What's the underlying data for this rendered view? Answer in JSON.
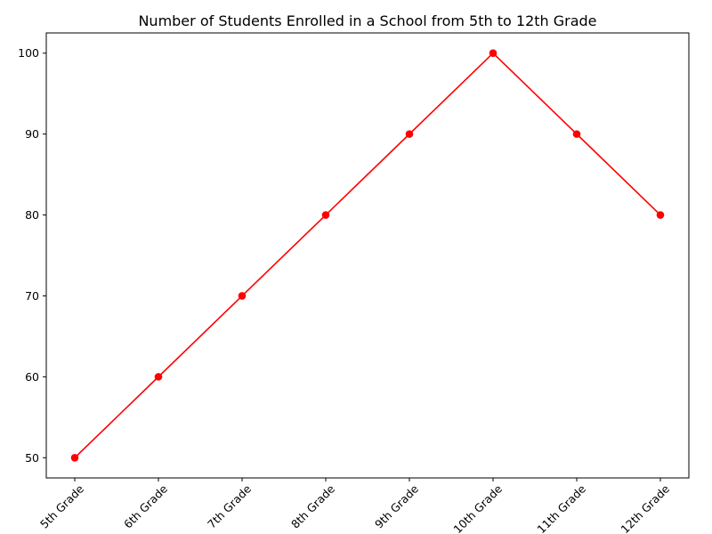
{
  "chart_data": {
    "type": "line",
    "title": "Number of Students Enrolled in a School from 5th to 12th Grade",
    "xlabel": "",
    "ylabel": "",
    "categories": [
      "5th Grade",
      "6th Grade",
      "7th Grade",
      "8th Grade",
      "9th Grade",
      "10th Grade",
      "11th Grade",
      "12th Grade"
    ],
    "series": [
      {
        "values": [
          50,
          60,
          70,
          80,
          90,
          100,
          90,
          80
        ],
        "color": "#ff0000",
        "marker": "circle"
      }
    ],
    "ylim": [
      47.5,
      102.5
    ],
    "yticks": [
      50,
      60,
      70,
      80,
      90,
      100
    ],
    "xtick_rotation_deg": 45,
    "grid": false,
    "legend": "none"
  }
}
